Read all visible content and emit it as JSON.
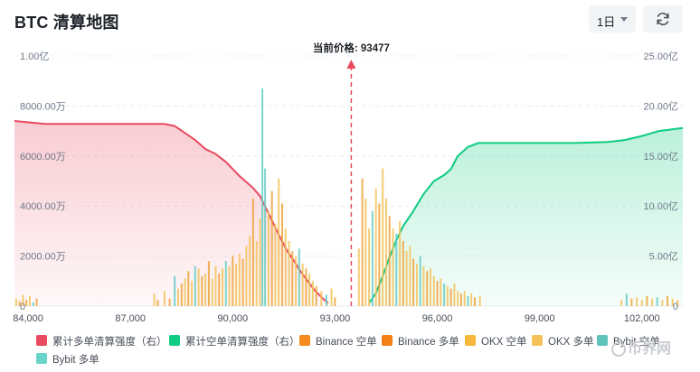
{
  "header": {
    "title": "BTC 清算地图",
    "timeframe": "1日",
    "refresh_icon": "refresh-icon"
  },
  "chart_data": {
    "type": "bar",
    "title": "BTC 清算地图",
    "current_price_label": "当前价格: 93477",
    "current_price": 93477,
    "xlim": [
      83600,
      103200
    ],
    "x_ticks": [
      84000,
      87000,
      90000,
      93000,
      96000,
      99000,
      102000
    ],
    "x_tick_labels": [
      "84,000",
      "87,000",
      "90,000",
      "93,000",
      "96,000",
      "99,000",
      "102,000"
    ],
    "left_axis": {
      "min": 0,
      "max": 10000,
      "unit": "万",
      "ticks": [
        0,
        2000,
        4000,
        6000,
        8000,
        10000
      ],
      "tick_labels": [
        "0",
        "2000.00万",
        "4000.00万",
        "6000.00万",
        "8000.00万",
        "1.00亿"
      ]
    },
    "right_axis": {
      "min": 0,
      "max": 25,
      "unit": "亿",
      "ticks": [
        0,
        5,
        10,
        15,
        20,
        25
      ],
      "tick_labels": [
        "0",
        "5.00亿",
        "10.00亿",
        "15.00亿",
        "20.00亿",
        "25.00亿"
      ]
    },
    "colors": {
      "long_cumulative": "#e84a5f",
      "short_cumulative": "#0ecb81",
      "bar_orange": "#f0a33b",
      "bar_yellow": "#f3c35a",
      "bar_teal": "#66cdc4",
      "price_line": "#e84a5f"
    },
    "series": [
      {
        "name": "累计多单清算强度（右）",
        "type": "area",
        "color": "#e84a5f",
        "x": [
          83600,
          84500,
          85500,
          86500,
          87500,
          88000,
          88300,
          88600,
          88900,
          89200,
          89500,
          89800,
          90000,
          90200,
          90400,
          90600,
          90800,
          91000,
          91200,
          91400,
          91600,
          91800,
          92000,
          92200,
          92400,
          92600,
          92800
        ],
        "values": [
          18.5,
          18.2,
          18.2,
          18.2,
          18.2,
          18.2,
          18.0,
          17.3,
          16.6,
          15.7,
          15.2,
          14.4,
          13.7,
          13.0,
          12.4,
          11.8,
          11.0,
          9.6,
          8.2,
          6.8,
          5.5,
          4.5,
          3.4,
          2.5,
          1.6,
          0.9,
          0.3
        ]
      },
      {
        "name": "累计空单清算强度（右）",
        "type": "area",
        "color": "#0ecb81",
        "x": [
          94000,
          94200,
          94400,
          94600,
          94800,
          95000,
          95300,
          95600,
          95900,
          96200,
          96400,
          96600,
          96900,
          97200,
          97500,
          98000,
          99000,
          100000,
          101000,
          101500,
          102000,
          102500,
          103200
        ],
        "values": [
          0.3,
          1.3,
          3.0,
          4.9,
          6.6,
          8.0,
          9.5,
          11.2,
          12.5,
          13.1,
          13.7,
          15.0,
          15.9,
          16.3,
          16.3,
          16.3,
          16.3,
          16.3,
          16.4,
          16.6,
          17.0,
          17.5,
          17.8
        ]
      },
      {
        "name": "Binance 空单",
        "type": "bar",
        "color": "#f58a1f"
      },
      {
        "name": "Binance 多单",
        "type": "bar",
        "color": "#f57f17"
      },
      {
        "name": "OKX 空单",
        "type": "bar",
        "color": "#f6b93b"
      },
      {
        "name": "OKX 多单",
        "type": "bar",
        "color": "#f3c35a"
      },
      {
        "name": "Bybit 空单",
        "type": "bar",
        "color": "#5fc3bb"
      },
      {
        "name": "Bybit 多单",
        "type": "bar",
        "color": "#6ad3c9"
      }
    ],
    "bars": [
      {
        "x": 83650,
        "v": 300,
        "c": "y"
      },
      {
        "x": 83750,
        "v": 200,
        "c": "o"
      },
      {
        "x": 83850,
        "v": 450,
        "c": "y"
      },
      {
        "x": 83950,
        "v": 250,
        "c": "o"
      },
      {
        "x": 84050,
        "v": 400,
        "c": "y"
      },
      {
        "x": 84150,
        "v": 150,
        "c": "t"
      },
      {
        "x": 84250,
        "v": 300,
        "c": "o"
      },
      {
        "x": 87700,
        "v": 500,
        "c": "y"
      },
      {
        "x": 87800,
        "v": 250,
        "c": "o"
      },
      {
        "x": 88000,
        "v": 600,
        "c": "y"
      },
      {
        "x": 88150,
        "v": 300,
        "c": "o"
      },
      {
        "x": 88300,
        "v": 1200,
        "c": "t"
      },
      {
        "x": 88400,
        "v": 700,
        "c": "y"
      },
      {
        "x": 88500,
        "v": 900,
        "c": "o"
      },
      {
        "x": 88600,
        "v": 1100,
        "c": "y"
      },
      {
        "x": 88700,
        "v": 1400,
        "c": "o"
      },
      {
        "x": 88800,
        "v": 1000,
        "c": "y"
      },
      {
        "x": 88900,
        "v": 1600,
        "c": "t"
      },
      {
        "x": 89000,
        "v": 1500,
        "c": "y"
      },
      {
        "x": 89100,
        "v": 1200,
        "c": "o"
      },
      {
        "x": 89200,
        "v": 1300,
        "c": "y"
      },
      {
        "x": 89300,
        "v": 1800,
        "c": "o"
      },
      {
        "x": 89400,
        "v": 1100,
        "c": "y"
      },
      {
        "x": 89500,
        "v": 1600,
        "c": "y"
      },
      {
        "x": 89600,
        "v": 1300,
        "c": "o"
      },
      {
        "x": 89700,
        "v": 1500,
        "c": "y"
      },
      {
        "x": 89800,
        "v": 1800,
        "c": "t"
      },
      {
        "x": 89900,
        "v": 1600,
        "c": "y"
      },
      {
        "x": 90000,
        "v": 2000,
        "c": "o"
      },
      {
        "x": 90100,
        "v": 1700,
        "c": "y"
      },
      {
        "x": 90200,
        "v": 2100,
        "c": "y"
      },
      {
        "x": 90300,
        "v": 1900,
        "c": "o"
      },
      {
        "x": 90400,
        "v": 2400,
        "c": "y"
      },
      {
        "x": 90500,
        "v": 2800,
        "c": "y"
      },
      {
        "x": 90600,
        "v": 4300,
        "c": "o"
      },
      {
        "x": 90700,
        "v": 2600,
        "c": "y"
      },
      {
        "x": 90800,
        "v": 3500,
        "c": "y"
      },
      {
        "x": 90870,
        "v": 8700,
        "c": "t"
      },
      {
        "x": 90950,
        "v": 5500,
        "c": "t"
      },
      {
        "x": 91050,
        "v": 3800,
        "c": "y"
      },
      {
        "x": 91150,
        "v": 4600,
        "c": "o"
      },
      {
        "x": 91250,
        "v": 3300,
        "c": "y"
      },
      {
        "x": 91350,
        "v": 5100,
        "c": "y"
      },
      {
        "x": 91450,
        "v": 4100,
        "c": "o"
      },
      {
        "x": 91550,
        "v": 3100,
        "c": "y"
      },
      {
        "x": 91650,
        "v": 2600,
        "c": "y"
      },
      {
        "x": 91750,
        "v": 2200,
        "c": "o"
      },
      {
        "x": 91850,
        "v": 2000,
        "c": "y"
      },
      {
        "x": 91950,
        "v": 2300,
        "c": "t"
      },
      {
        "x": 92050,
        "v": 1700,
        "c": "y"
      },
      {
        "x": 92150,
        "v": 1500,
        "c": "o"
      },
      {
        "x": 92250,
        "v": 1300,
        "c": "y"
      },
      {
        "x": 92350,
        "v": 1000,
        "c": "y"
      },
      {
        "x": 92450,
        "v": 800,
        "c": "o"
      },
      {
        "x": 92600,
        "v": 600,
        "c": "y"
      },
      {
        "x": 92750,
        "v": 450,
        "c": "t"
      },
      {
        "x": 92900,
        "v": 700,
        "c": "y"
      },
      {
        "x": 93000,
        "v": 350,
        "c": "o"
      },
      {
        "x": 93700,
        "v": 2300,
        "c": "y"
      },
      {
        "x": 93800,
        "v": 5100,
        "c": "o"
      },
      {
        "x": 93900,
        "v": 4300,
        "c": "y"
      },
      {
        "x": 94000,
        "v": 3100,
        "c": "y"
      },
      {
        "x": 94100,
        "v": 3800,
        "c": "t"
      },
      {
        "x": 94200,
        "v": 4700,
        "c": "y"
      },
      {
        "x": 94300,
        "v": 4100,
        "c": "o"
      },
      {
        "x": 94400,
        "v": 5500,
        "c": "y"
      },
      {
        "x": 94500,
        "v": 4300,
        "c": "y"
      },
      {
        "x": 94600,
        "v": 3600,
        "c": "o"
      },
      {
        "x": 94700,
        "v": 3100,
        "c": "y"
      },
      {
        "x": 94800,
        "v": 2900,
        "c": "t"
      },
      {
        "x": 94900,
        "v": 3400,
        "c": "y"
      },
      {
        "x": 95000,
        "v": 2600,
        "c": "o"
      },
      {
        "x": 95100,
        "v": 2200,
        "c": "y"
      },
      {
        "x": 95200,
        "v": 2400,
        "c": "y"
      },
      {
        "x": 95300,
        "v": 1900,
        "c": "o"
      },
      {
        "x": 95400,
        "v": 1700,
        "c": "y"
      },
      {
        "x": 95500,
        "v": 2000,
        "c": "t"
      },
      {
        "x": 95600,
        "v": 1600,
        "c": "y"
      },
      {
        "x": 95700,
        "v": 1400,
        "c": "o"
      },
      {
        "x": 95800,
        "v": 1500,
        "c": "y"
      },
      {
        "x": 95900,
        "v": 1200,
        "c": "y"
      },
      {
        "x": 96000,
        "v": 1000,
        "c": "o"
      },
      {
        "x": 96100,
        "v": 1100,
        "c": "y"
      },
      {
        "x": 96200,
        "v": 900,
        "c": "t"
      },
      {
        "x": 96300,
        "v": 800,
        "c": "y"
      },
      {
        "x": 96400,
        "v": 700,
        "c": "o"
      },
      {
        "x": 96500,
        "v": 900,
        "c": "y"
      },
      {
        "x": 96600,
        "v": 600,
        "c": "y"
      },
      {
        "x": 96700,
        "v": 500,
        "c": "o"
      },
      {
        "x": 96800,
        "v": 600,
        "c": "y"
      },
      {
        "x": 96900,
        "v": 400,
        "c": "t"
      },
      {
        "x": 97000,
        "v": 500,
        "c": "y"
      },
      {
        "x": 97100,
        "v": 350,
        "c": "o"
      },
      {
        "x": 97250,
        "v": 400,
        "c": "y"
      },
      {
        "x": 101400,
        "v": 250,
        "c": "y"
      },
      {
        "x": 101550,
        "v": 500,
        "c": "t"
      },
      {
        "x": 101700,
        "v": 300,
        "c": "o"
      },
      {
        "x": 101850,
        "v": 350,
        "c": "y"
      },
      {
        "x": 102000,
        "v": 250,
        "c": "y"
      },
      {
        "x": 102150,
        "v": 400,
        "c": "o"
      },
      {
        "x": 102300,
        "v": 300,
        "c": "y"
      },
      {
        "x": 102450,
        "v": 350,
        "c": "t"
      },
      {
        "x": 102600,
        "v": 250,
        "c": "y"
      },
      {
        "x": 102750,
        "v": 400,
        "c": "o"
      },
      {
        "x": 102900,
        "v": 300,
        "c": "y"
      },
      {
        "x": 103050,
        "v": 250,
        "c": "y"
      }
    ]
  },
  "legend": [
    {
      "label": "累计多单清算强度（右）",
      "color": "#e84a5f"
    },
    {
      "label": "累计空单清算强度（右）",
      "color": "#0ecb81"
    },
    {
      "label": "Binance 空单",
      "color": "#f58a1f"
    },
    {
      "label": "Binance 多单",
      "color": "#f57f17"
    },
    {
      "label": "OKX 空单",
      "color": "#f6b93b"
    },
    {
      "label": "OKX 多单",
      "color": "#f3c35a"
    },
    {
      "label": "Bybit 空单",
      "color": "#5fc3bb"
    },
    {
      "label": "Bybit 多单",
      "color": "#6ad3c9"
    }
  ],
  "watermark": "币界网"
}
